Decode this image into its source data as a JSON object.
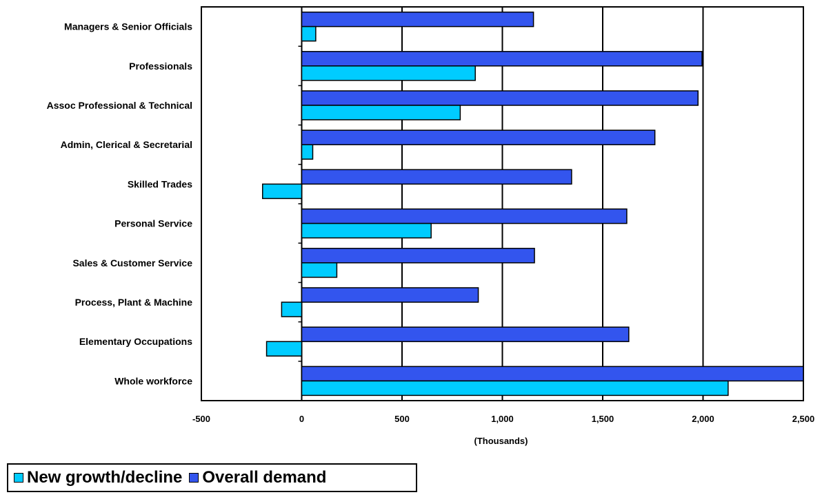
{
  "chart_data": {
    "type": "bar",
    "orientation": "horizontal",
    "categories": [
      "Managers & Senior Officials",
      "Professionals",
      "Assoc Professional & Technical",
      "Admin, Clerical & Secretarial",
      "Skilled Trades",
      "Personal Service",
      "Sales & Customer Service",
      "Process, Plant & Machine",
      "Elementary Occupations",
      "Whole workforce"
    ],
    "series": [
      {
        "name": "Overall demand",
        "color": "#3355ee",
        "values": [
          1155,
          1995,
          1975,
          1760,
          1345,
          1620,
          1160,
          880,
          1630,
          2500
        ]
      },
      {
        "name": "New growth/decline",
        "color": "#00ccff",
        "values": [
          70,
          865,
          790,
          55,
          -195,
          645,
          175,
          -100,
          -175,
          2125
        ]
      }
    ],
    "xlim": [
      -500,
      2500
    ],
    "xticks": [
      -500,
      0,
      500,
      1000,
      1500,
      2000,
      2500
    ],
    "xtick_labels": [
      "-500",
      "0",
      "500",
      "1,000",
      "1,500",
      "2,000",
      "2,500"
    ],
    "xlabel": "(Thousands)",
    "grid": "vertical",
    "legend_position": "bottom-left"
  },
  "legend": {
    "items": [
      {
        "label": "New growth/decline",
        "color": "#00ccff"
      },
      {
        "label": "Overall demand",
        "color": "#3355ee"
      }
    ]
  }
}
